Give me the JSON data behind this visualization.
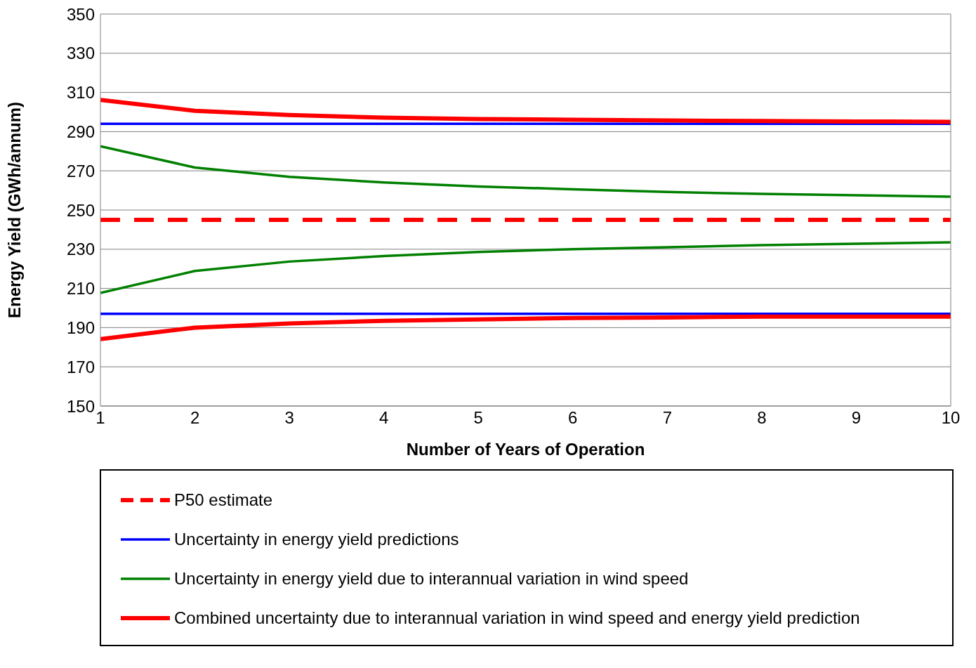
{
  "chart_data": {
    "type": "line",
    "xlabel": "Number of Years of Operation",
    "ylabel": "Energy Yield (GWh/annum)",
    "x": [
      1,
      2,
      3,
      4,
      5,
      6,
      7,
      8,
      9,
      10
    ],
    "xlim": [
      1,
      10
    ],
    "xticks": [
      1,
      2,
      3,
      4,
      5,
      6,
      7,
      8,
      9,
      10
    ],
    "ylim": [
      150,
      350
    ],
    "yticks": [
      150,
      170,
      190,
      210,
      230,
      250,
      270,
      290,
      310,
      330,
      350
    ],
    "grid": "y",
    "legend": "bottom",
    "marker": "none",
    "series": [
      {
        "name": "P50 estimate",
        "color": "#ff0000",
        "line_style": "dashed",
        "values": [
          245,
          245,
          245,
          245,
          245,
          245,
          245,
          245,
          245,
          245
        ]
      },
      {
        "name": "Uncertainty in energy yield predictions",
        "color": "#0000ff",
        "line_style": "solid",
        "values": [
          294,
          294,
          294,
          294,
          294,
          294,
          294,
          294,
          294,
          294
        ]
      },
      {
        "color": "#0000ff",
        "line_style": "solid",
        "values": [
          197,
          197,
          197,
          197,
          197,
          197,
          197,
          197,
          197,
          197
        ]
      },
      {
        "name": "Uncertainty in energy yield due to interannual variation in wind speed",
        "color": "#008000",
        "line_style": "solid",
        "values": [
          282.5,
          271.7,
          266.9,
          264.1,
          262,
          260.6,
          259.2,
          258.2,
          257.5,
          256.8
        ]
      },
      {
        "color": "#008000",
        "line_style": "solid",
        "values": [
          207.7,
          218.9,
          223.7,
          226.5,
          228.6,
          230,
          231,
          232.1,
          232.8,
          233.5
        ]
      },
      {
        "name": "Combined uncertainty due to interannual variation in wind speed and energy yield prediction",
        "color": "#ff0000",
        "line_style": "solid",
        "values": [
          306.2,
          300.6,
          298.5,
          297.1,
          296.4,
          296.1,
          295.7,
          295.4,
          295.2,
          295
        ]
      },
      {
        "color": "#ff0000",
        "line_style": "solid",
        "values": [
          184.1,
          190,
          192.1,
          193.5,
          194.2,
          194.9,
          195.2,
          195.6,
          195.6,
          195.6
        ]
      }
    ]
  }
}
